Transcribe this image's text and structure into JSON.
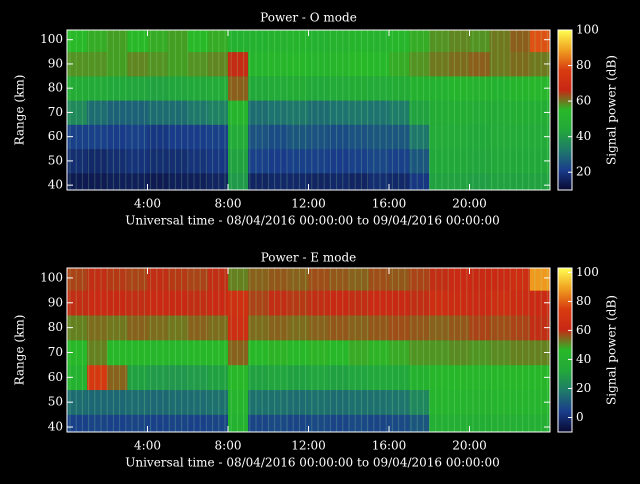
{
  "chart_data": [
    {
      "type": "heatmap",
      "title": "Power - O mode",
      "xlabel": "Universal time - 08/04/2016 00:00:00 to 09/04/2016 00:00:00",
      "ylabel": "Range (km)",
      "colorbar_label": "Signal power (dB)",
      "x": [
        0,
        1,
        2,
        3,
        4,
        5,
        6,
        7,
        8,
        9,
        10,
        11,
        12,
        13,
        14,
        15,
        16,
        17,
        18,
        19,
        20,
        21,
        22,
        23,
        24
      ],
      "y": [
        38,
        45,
        55,
        65,
        75,
        85,
        95,
        104
      ],
      "z": [
        [
          14,
          14,
          15,
          15,
          14,
          15,
          15,
          16,
          40,
          16,
          17,
          17,
          16,
          17,
          16,
          18,
          17,
          20,
          42,
          42,
          41,
          42,
          42,
          42
        ],
        [
          18,
          17,
          18,
          19,
          18,
          18,
          19,
          20,
          42,
          22,
          21,
          22,
          22,
          21,
          22,
          23,
          22,
          26,
          44,
          44,
          43,
          44,
          44,
          44
        ],
        [
          22,
          22,
          21,
          22,
          20,
          21,
          21,
          22,
          45,
          25,
          24,
          26,
          25,
          24,
          25,
          26,
          26,
          32,
          45,
          45,
          44,
          45,
          45,
          45
        ],
        [
          36,
          30,
          28,
          28,
          30,
          30,
          32,
          34,
          52,
          30,
          31,
          32,
          30,
          31,
          32,
          31,
          33,
          42,
          46,
          47,
          46,
          46,
          47,
          47
        ],
        [
          46,
          45,
          44,
          43,
          42,
          43,
          44,
          45,
          62,
          44,
          45,
          46,
          44,
          45,
          46,
          45,
          46,
          50,
          50,
          52,
          51,
          50,
          52,
          53
        ],
        [
          58,
          58,
          57,
          59,
          58,
          57,
          58,
          59,
          66,
          52,
          53,
          54,
          52,
          53,
          55,
          54,
          56,
          58,
          60,
          61,
          62,
          60,
          61,
          60
        ],
        [
          55,
          56,
          57,
          55,
          56,
          57,
          55,
          56,
          50,
          50,
          51,
          52,
          50,
          51,
          52,
          51,
          53,
          56,
          58,
          59,
          58,
          60,
          62,
          80
        ]
      ],
      "xlim": [
        0,
        24
      ],
      "ylim": [
        38,
        104
      ],
      "xticks": [
        {
          "value": 4,
          "label": "4:00"
        },
        {
          "value": 8,
          "label": "8:00"
        },
        {
          "value": 12,
          "label": "12:00"
        },
        {
          "value": 16,
          "label": "16:00"
        },
        {
          "value": 20,
          "label": "20:00"
        }
      ],
      "yticks": [
        40,
        50,
        60,
        70,
        80,
        90,
        100
      ],
      "clim": [
        10,
        100
      ],
      "cticks": [
        20,
        40,
        60,
        80,
        100
      ],
      "colorscale": [
        "#080830",
        "#1a3c8c",
        "#1f7a6a",
        "#22a83a",
        "#28b828",
        "#c82814",
        "#d83c10",
        "#f0a020",
        "#ffff50"
      ]
    },
    {
      "type": "heatmap",
      "title": "Power - E mode",
      "xlabel": "Universal time - 08/04/2016 00:00:00 to 09/04/2016 00:00:00",
      "ylabel": "Range (km)",
      "colorbar_label": "Signal power (dB)",
      "x": [
        0,
        1,
        2,
        3,
        4,
        5,
        6,
        7,
        8,
        9,
        10,
        11,
        12,
        13,
        14,
        15,
        16,
        17,
        18,
        19,
        20,
        21,
        22,
        23,
        24
      ],
      "y": [
        38,
        45,
        55,
        65,
        75,
        85,
        95,
        104
      ],
      "z": [
        [
          5,
          6,
          5,
          6,
          5,
          6,
          5,
          6,
          40,
          6,
          7,
          6,
          7,
          6,
          7,
          6,
          7,
          10,
          38,
          38,
          37,
          38,
          38,
          38
        ],
        [
          15,
          14,
          14,
          15,
          14,
          15,
          15,
          16,
          42,
          16,
          16,
          15,
          16,
          15,
          16,
          16,
          17,
          22,
          42,
          42,
          41,
          42,
          42,
          42
        ],
        [
          40,
          72,
          55,
          30,
          28,
          27,
          28,
          30,
          46,
          30,
          31,
          30,
          31,
          30,
          31,
          32,
          32,
          40,
          44,
          45,
          44,
          45,
          45,
          45
        ],
        [
          46,
          52,
          46,
          45,
          44,
          44,
          45,
          46,
          55,
          46,
          47,
          46,
          47,
          46,
          48,
          47,
          48,
          50,
          50,
          51,
          50,
          51,
          52,
          52
        ],
        [
          52,
          54,
          53,
          55,
          54,
          53,
          55,
          54,
          64,
          54,
          55,
          54,
          55,
          56,
          55,
          56,
          57,
          56,
          55,
          56,
          58,
          57,
          58,
          60
        ],
        [
          60,
          62,
          61,
          60,
          62,
          61,
          60,
          62,
          66,
          58,
          60,
          59,
          60,
          61,
          60,
          62,
          61,
          60,
          64,
          63,
          62,
          64,
          63,
          62
        ],
        [
          58,
          60,
          59,
          58,
          60,
          59,
          58,
          60,
          52,
          55,
          56,
          55,
          57,
          56,
          55,
          57,
          56,
          58,
          60,
          62,
          61,
          62,
          64,
          88
        ]
      ],
      "xlim": [
        0,
        24
      ],
      "ylim": [
        38,
        104
      ],
      "xticks": [
        {
          "value": 4,
          "label": "4:00"
        },
        {
          "value": 8,
          "label": "8:00"
        },
        {
          "value": 12,
          "label": "12:00"
        },
        {
          "value": 16,
          "label": "16:00"
        },
        {
          "value": 20,
          "label": "20:00"
        }
      ],
      "yticks": [
        40,
        50,
        60,
        70,
        80,
        90,
        100
      ],
      "clim": [
        -10,
        103
      ],
      "cticks": [
        0,
        20,
        40,
        60,
        80,
        100
      ],
      "colorscale": [
        "#080830",
        "#1a3c8c",
        "#1f7a6a",
        "#22a83a",
        "#28b828",
        "#c82814",
        "#d83c10",
        "#f0a020",
        "#ffff50"
      ]
    }
  ]
}
